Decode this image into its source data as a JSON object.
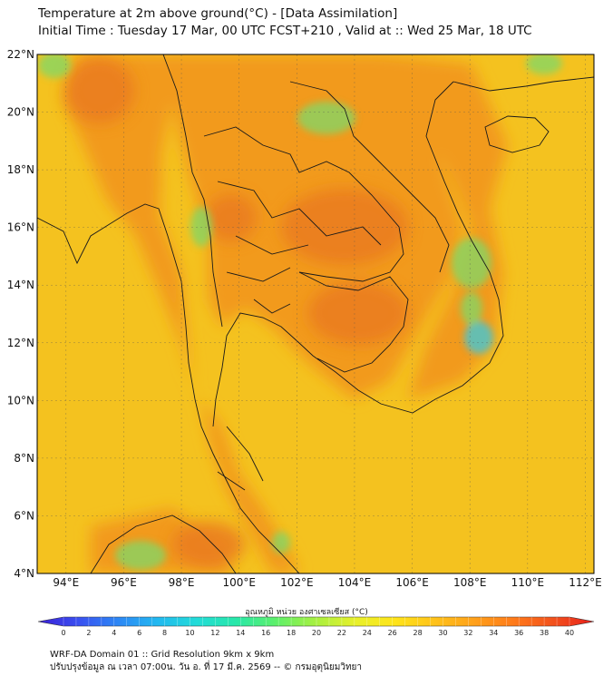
{
  "title": {
    "line1": "Temperature at 2m above ground(°C) - [Data Assimilation]",
    "line2": "Initial Time : Tuesday 17 Mar, 00 UTC FCST+210 , Valid at :: Wed 25 Mar, 18 UTC"
  },
  "map": {
    "lat_labels": [
      "22°N",
      "20°N",
      "18°N",
      "16°N",
      "14°N",
      "12°N",
      "10°N",
      "8°N",
      "6°N",
      "4°N"
    ],
    "lon_labels": [
      "94°E",
      "96°E",
      "98°E",
      "100°E",
      "102°E",
      "104°E",
      "106°E",
      "108°E",
      "110°E",
      "112°E"
    ],
    "lat_range": [
      4,
      22
    ],
    "lon_range": [
      93,
      112.3
    ],
    "palette": {
      "sea": "#f4c21f",
      "land_warm": "#f29a1e",
      "land_hot": "#ea7b1c",
      "cool_green": "#7fd86a",
      "cyan": "#42c7d6",
      "border": "#1a1a1a"
    }
  },
  "colorbar": {
    "title": "อุณหภูมิ หน่วย องศาเซลเซียส (°C)",
    "ticks": [
      "0",
      "2",
      "4",
      "6",
      "8",
      "10",
      "12",
      "14",
      "16",
      "18",
      "20",
      "22",
      "24",
      "26",
      "28",
      "30",
      "32",
      "34",
      "36",
      "38",
      "40"
    ],
    "colors": [
      "#3b1fd6",
      "#3a4ff0",
      "#2d86f5",
      "#22b8f0",
      "#22dcd8",
      "#28e8a8",
      "#5ef06a",
      "#a8f040",
      "#e8f02a",
      "#ffe41a",
      "#ffc21a",
      "#ffa01a",
      "#ff7a1a",
      "#f2501c",
      "#e8201c"
    ]
  },
  "footer": {
    "line1": "WRF-DA Domain 01 :: Grid Resolution 9km x 9km",
    "line2": "ปรับปรุงข้อมูล ณ เวลา 07:00น. วัน อ. ที่ 17 มี.ค. 2569 -- © กรมอุตุนิยมวิทยา"
  }
}
